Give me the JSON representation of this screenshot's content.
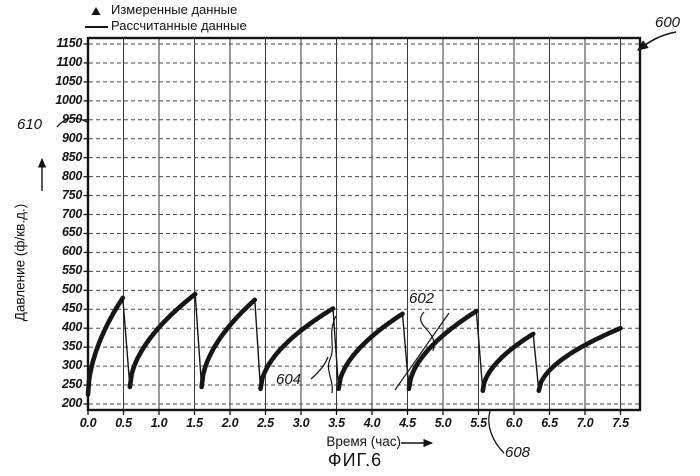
{
  "figure": {
    "fig_label": "ФИГ.6"
  },
  "legend": {
    "measured": "Измеренные данные",
    "calculated": "Рассчитанные данные"
  },
  "annotations": {
    "fig_ref": "600",
    "yaxis_ref": "610",
    "curve_ref": "602",
    "gap_ref": "604",
    "xaxis_ref": "608"
  },
  "chart_data": {
    "type": "line",
    "title": "ФИГ.6",
    "xlabel": "Время (час)",
    "ylabel": "Давление (ф/кв.д.)",
    "xlim": [
      0,
      7.9
    ],
    "ylim": [
      185,
      1168
    ],
    "grid": "on",
    "legend_position": "top-left",
    "x_ticks": [
      "0.0",
      "0.5",
      "1.0",
      "1.5",
      "2.0",
      "2.5",
      "3.0",
      "3.5",
      "4.0",
      "4.5",
      "5.0",
      "5.5",
      "6.0",
      "6.5",
      "7.0",
      "7.5"
    ],
    "y_ticks": [
      200,
      250,
      300,
      350,
      400,
      450,
      500,
      550,
      600,
      650,
      700,
      750,
      800,
      850,
      900,
      950,
      1000,
      1050,
      1100,
      1150
    ],
    "series": [
      {
        "name": "Измеренные данные",
        "style": "dense triangle markers along rising ramps"
      },
      {
        "name": "Рассчитанные данные",
        "style": "solid line, includes vertical pressure drops"
      }
    ],
    "ramp_shape": "concave buildup: p = p_start + (p_peak - p_start) * u^0.55",
    "sawtooth_cycles": [
      {
        "t_start": 0.0,
        "p_start": 225,
        "t_peak": 0.49,
        "p_peak": 480
      },
      {
        "t_start": 0.59,
        "p_start": 245,
        "t_peak": 1.51,
        "p_peak": 490
      },
      {
        "t_start": 1.6,
        "p_start": 245,
        "t_peak": 2.35,
        "p_peak": 475
      },
      {
        "t_start": 2.43,
        "p_start": 240,
        "t_peak": 3.45,
        "p_peak": 452
      },
      {
        "t_start": 3.53,
        "p_start": 240,
        "t_peak": 4.43,
        "p_peak": 438
      },
      {
        "t_start": 4.52,
        "p_start": 240,
        "t_peak": 5.47,
        "p_peak": 445
      },
      {
        "t_start": 5.56,
        "p_start": 235,
        "t_peak": 6.27,
        "p_peak": 385
      },
      {
        "t_start": 6.35,
        "p_start": 235,
        "t_peak": 7.5,
        "p_peak": 400,
        "ends_without_drop": true
      }
    ]
  }
}
